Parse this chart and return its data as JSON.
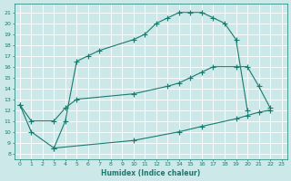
{
  "xlabel": "Humidex (Indice chaleur)",
  "bg_color": "#cce8e8",
  "line_color": "#1a7a6e",
  "grid_color": "#ffffff",
  "xlim": [
    -0.5,
    23.5
  ],
  "ylim": [
    7.5,
    21.8
  ],
  "xticks": [
    0,
    1,
    2,
    3,
    4,
    5,
    6,
    7,
    8,
    9,
    10,
    11,
    12,
    13,
    14,
    15,
    16,
    17,
    18,
    19,
    20,
    21,
    22,
    23
  ],
  "yticks": [
    8,
    9,
    10,
    11,
    12,
    13,
    14,
    15,
    16,
    17,
    18,
    19,
    20,
    21
  ],
  "curve1_x": [
    0,
    1,
    3,
    4,
    5,
    6,
    7,
    10,
    11,
    12,
    13,
    14,
    15,
    16,
    17,
    18,
    19,
    20
  ],
  "curve1_y": [
    12.5,
    10.0,
    8.5,
    11.0,
    16.5,
    17.0,
    17.5,
    18.5,
    19.0,
    20.0,
    20.5,
    21.0,
    21.0,
    21.0,
    20.5,
    20.0,
    18.5,
    12.0
  ],
  "curve2_x": [
    0,
    1,
    3,
    4,
    5,
    10,
    13,
    14,
    15,
    16,
    17,
    19,
    20,
    21,
    22
  ],
  "curve2_y": [
    12.5,
    11.0,
    11.0,
    12.2,
    13.0,
    13.5,
    14.2,
    14.5,
    15.0,
    15.5,
    16.0,
    16.0,
    16.0,
    14.2,
    12.2
  ],
  "curve3_x": [
    3,
    10,
    14,
    16,
    19,
    20,
    21,
    22
  ],
  "curve3_y": [
    8.5,
    9.2,
    10.0,
    10.5,
    11.2,
    11.5,
    11.8,
    12.0
  ]
}
